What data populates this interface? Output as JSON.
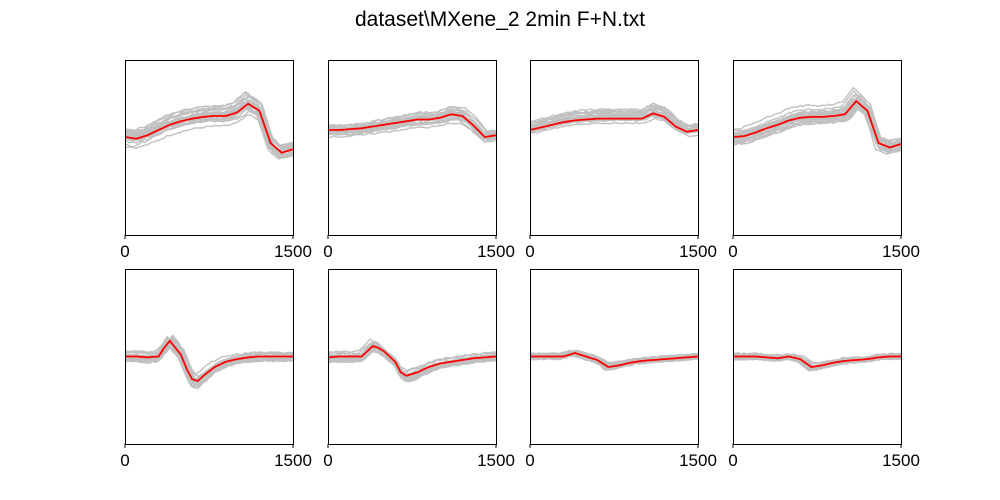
{
  "figure": {
    "title": "dataset\\MXene_2 2min F+N.txt"
  },
  "style": {
    "mean_color": "#ff0000",
    "trace_color": "#c0c0c0",
    "axes_color": "#000000",
    "background": "#ffffff"
  },
  "chart_data": {
    "type": "line",
    "title": "dataset\\MXene_2 2min F+N.txt",
    "xlim": [
      0,
      1500
    ],
    "ylim": [
      -1,
      1
    ],
    "xticks": [
      0,
      1500
    ],
    "x_tick_labels": [
      "0",
      "1500"
    ],
    "y_ticks_shown": false,
    "grid": false,
    "legend": "none",
    "traces_per_panel": 24,
    "subplots": [
      {
        "row": 1,
        "col": 1,
        "x": [
          0,
          100,
          200,
          300,
          400,
          500,
          600,
          700,
          800,
          900,
          1000,
          1100,
          1200,
          1300,
          1400,
          1500
        ],
        "mean": [
          0.12,
          0.1,
          0.14,
          0.2,
          0.26,
          0.3,
          0.33,
          0.35,
          0.36,
          0.36,
          0.4,
          0.5,
          0.42,
          0.05,
          -0.06,
          -0.02
        ],
        "spread": 0.08
      },
      {
        "row": 1,
        "col": 2,
        "x": [
          0,
          100,
          200,
          300,
          400,
          500,
          600,
          700,
          800,
          900,
          1000,
          1100,
          1200,
          1300,
          1400,
          1500
        ],
        "mean": [
          0.2,
          0.2,
          0.21,
          0.22,
          0.24,
          0.26,
          0.28,
          0.3,
          0.32,
          0.32,
          0.34,
          0.38,
          0.36,
          0.25,
          0.12,
          0.14
        ],
        "spread": 0.05
      },
      {
        "row": 1,
        "col": 3,
        "x": [
          0,
          100,
          200,
          300,
          400,
          500,
          600,
          700,
          800,
          900,
          1000,
          1100,
          1200,
          1300,
          1400,
          1500
        ],
        "mean": [
          0.2,
          0.23,
          0.26,
          0.29,
          0.31,
          0.32,
          0.33,
          0.33,
          0.33,
          0.33,
          0.33,
          0.39,
          0.35,
          0.24,
          0.18,
          0.2
        ],
        "spread": 0.05
      },
      {
        "row": 1,
        "col": 4,
        "x": [
          0,
          100,
          200,
          300,
          400,
          500,
          600,
          700,
          800,
          900,
          1000,
          1100,
          1200,
          1300,
          1400,
          1500
        ],
        "mean": [
          0.12,
          0.13,
          0.17,
          0.22,
          0.26,
          0.31,
          0.34,
          0.35,
          0.35,
          0.36,
          0.38,
          0.53,
          0.42,
          0.05,
          0.0,
          0.04
        ],
        "spread": 0.08
      },
      {
        "row": 2,
        "col": 1,
        "x": [
          0,
          100,
          200,
          300,
          350,
          400,
          450,
          500,
          550,
          600,
          650,
          700,
          800,
          900,
          1000,
          1100,
          1200,
          1300,
          1400,
          1500
        ],
        "mean": [
          0.0,
          0.0,
          -0.01,
          0.0,
          0.1,
          0.18,
          0.1,
          0.02,
          -0.14,
          -0.26,
          -0.28,
          -0.22,
          -0.12,
          -0.06,
          -0.03,
          -0.01,
          0.0,
          0.0,
          0.0,
          0.0
        ],
        "spread": 0.05
      },
      {
        "row": 2,
        "col": 2,
        "x": [
          0,
          100,
          200,
          300,
          350,
          400,
          450,
          500,
          600,
          650,
          700,
          800,
          900,
          1000,
          1100,
          1200,
          1300,
          1400,
          1500
        ],
        "mean": [
          -0.01,
          0.0,
          0.0,
          0.0,
          0.06,
          0.12,
          0.1,
          0.06,
          -0.06,
          -0.18,
          -0.22,
          -0.18,
          -0.12,
          -0.08,
          -0.06,
          -0.04,
          -0.02,
          -0.01,
          0.0
        ],
        "spread": 0.05
      },
      {
        "row": 2,
        "col": 3,
        "x": [
          0,
          100,
          200,
          300,
          400,
          500,
          600,
          700,
          800,
          900,
          1000,
          1100,
          1200,
          1300,
          1400,
          1500
        ],
        "mean": [
          0.0,
          0.0,
          0.0,
          0.0,
          0.04,
          0.0,
          -0.04,
          -0.12,
          -0.1,
          -0.07,
          -0.05,
          -0.04,
          -0.03,
          -0.02,
          -0.01,
          0.0
        ],
        "spread": 0.03
      },
      {
        "row": 2,
        "col": 4,
        "x": [
          0,
          100,
          200,
          300,
          400,
          500,
          600,
          700,
          800,
          900,
          1000,
          1100,
          1200,
          1300,
          1400,
          1500
        ],
        "mean": [
          0.0,
          0.0,
          0.0,
          -0.01,
          -0.02,
          0.0,
          -0.03,
          -0.12,
          -0.1,
          -0.07,
          -0.05,
          -0.04,
          -0.03,
          -0.01,
          0.0,
          0.0
        ],
        "spread": 0.03
      }
    ]
  }
}
